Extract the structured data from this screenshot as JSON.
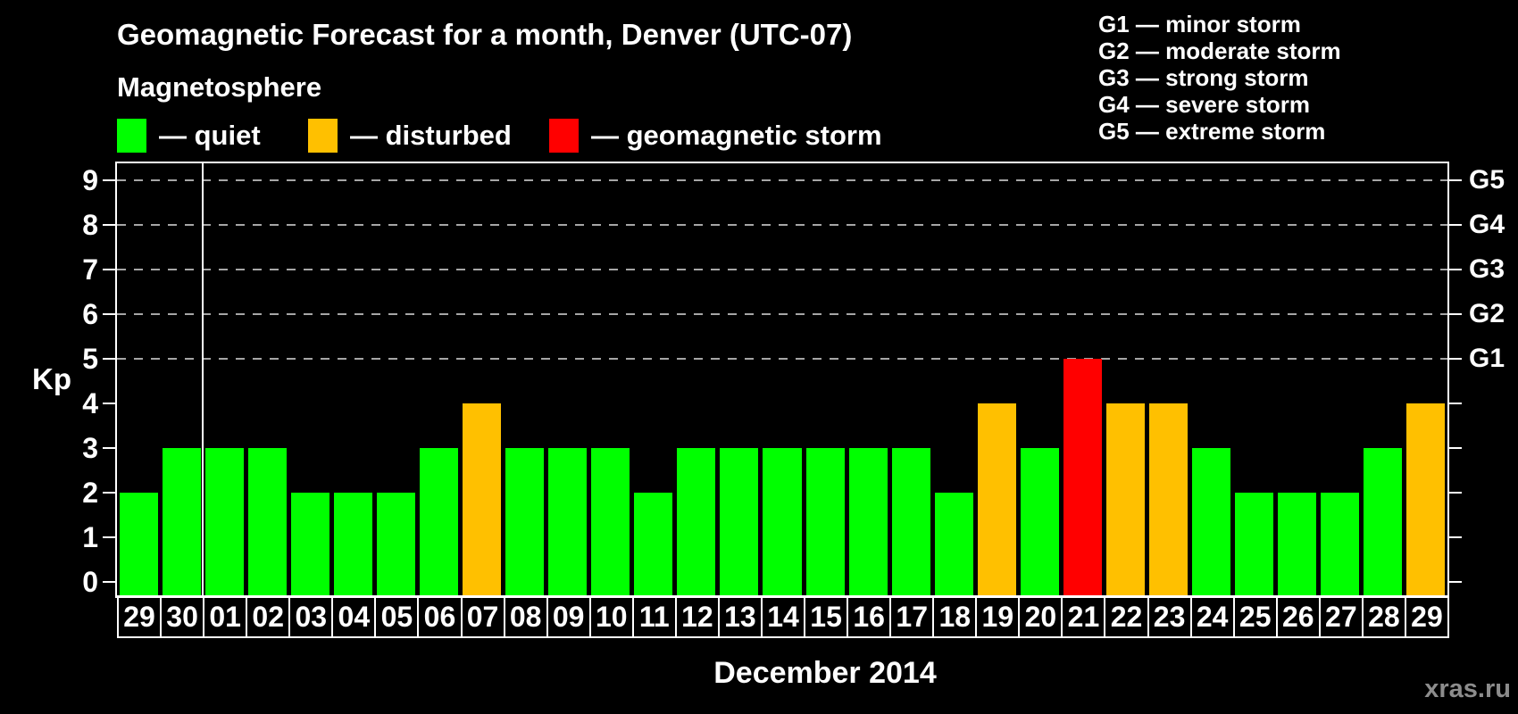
{
  "header": {
    "title": "Geomagnetic Forecast for a month, Denver (UTC-07)",
    "subtitle": "Magnetosphere"
  },
  "legend": {
    "items": [
      {
        "key": "quiet",
        "label": "— quiet",
        "color": "#00ff00"
      },
      {
        "key": "disturbed",
        "label": "— disturbed",
        "color": "#ffc000"
      },
      {
        "key": "storm",
        "label": "— geomagnetic storm",
        "color": "#ff0000"
      }
    ]
  },
  "storm_scale_legend": {
    "lines": [
      "G1 — minor storm",
      "G2 — moderate storm",
      "G3 — strong storm",
      "G4 — severe storm",
      "G5 — extreme storm"
    ]
  },
  "axes": {
    "y_label": "Kp",
    "x_title": "December 2014"
  },
  "watermark": "xras.ru",
  "chart_data": {
    "type": "bar",
    "title": "Geomagnetic Forecast for a month, Denver (UTC-07)",
    "xlabel": "December 2014",
    "ylabel": "Kp",
    "ylim": [
      0,
      9
    ],
    "y_ticks": [
      0,
      1,
      2,
      3,
      4,
      5,
      6,
      7,
      8,
      9
    ],
    "gridlines_at": [
      5,
      6,
      7,
      8,
      9
    ],
    "grid": "dashed-top-levels-only",
    "legend_position": "top-left",
    "right_axis_labels": [
      {
        "value": 5,
        "label": "G1"
      },
      {
        "value": 6,
        "label": "G2"
      },
      {
        "value": 7,
        "label": "G3"
      },
      {
        "value": 8,
        "label": "G4"
      },
      {
        "value": 9,
        "label": "G5"
      }
    ],
    "month_boundary_after_index": 1,
    "status_colors": {
      "quiet": "#00ff00",
      "disturbed": "#ffc000",
      "storm": "#ff0000"
    },
    "days": [
      {
        "day": "29",
        "kp": 2,
        "status": "quiet"
      },
      {
        "day": "30",
        "kp": 3,
        "status": "quiet"
      },
      {
        "day": "01",
        "kp": 3,
        "status": "quiet"
      },
      {
        "day": "02",
        "kp": 3,
        "status": "quiet"
      },
      {
        "day": "03",
        "kp": 2,
        "status": "quiet"
      },
      {
        "day": "04",
        "kp": 2,
        "status": "quiet"
      },
      {
        "day": "05",
        "kp": 2,
        "status": "quiet"
      },
      {
        "day": "06",
        "kp": 3,
        "status": "quiet"
      },
      {
        "day": "07",
        "kp": 4,
        "status": "disturbed"
      },
      {
        "day": "08",
        "kp": 3,
        "status": "quiet"
      },
      {
        "day": "09",
        "kp": 3,
        "status": "quiet"
      },
      {
        "day": "10",
        "kp": 3,
        "status": "quiet"
      },
      {
        "day": "11",
        "kp": 2,
        "status": "quiet"
      },
      {
        "day": "12",
        "kp": 3,
        "status": "quiet"
      },
      {
        "day": "13",
        "kp": 3,
        "status": "quiet"
      },
      {
        "day": "14",
        "kp": 3,
        "status": "quiet"
      },
      {
        "day": "15",
        "kp": 3,
        "status": "quiet"
      },
      {
        "day": "16",
        "kp": 3,
        "status": "quiet"
      },
      {
        "day": "17",
        "kp": 3,
        "status": "quiet"
      },
      {
        "day": "18",
        "kp": 2,
        "status": "quiet"
      },
      {
        "day": "19",
        "kp": 4,
        "status": "disturbed"
      },
      {
        "day": "20",
        "kp": 3,
        "status": "quiet"
      },
      {
        "day": "21",
        "kp": 5,
        "status": "storm"
      },
      {
        "day": "22",
        "kp": 4,
        "status": "disturbed"
      },
      {
        "day": "23",
        "kp": 4,
        "status": "disturbed"
      },
      {
        "day": "24",
        "kp": 3,
        "status": "quiet"
      },
      {
        "day": "25",
        "kp": 2,
        "status": "quiet"
      },
      {
        "day": "26",
        "kp": 2,
        "status": "quiet"
      },
      {
        "day": "27",
        "kp": 2,
        "status": "quiet"
      },
      {
        "day": "28",
        "kp": 3,
        "status": "quiet"
      },
      {
        "day": "29",
        "kp": 4,
        "status": "disturbed"
      }
    ]
  }
}
